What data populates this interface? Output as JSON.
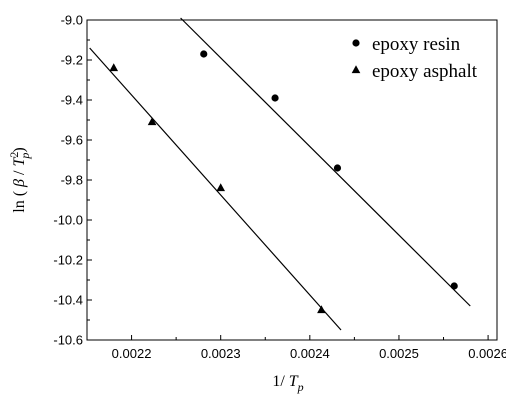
{
  "chart_data": {
    "type": "scatter",
    "xlabel": {
      "prefix": "1/ ",
      "var": "T",
      "sub": "p"
    },
    "ylabel": {
      "prefix": "ln ( ",
      "beta": "β",
      "mid": " / ",
      "var": "T",
      "sub": "p",
      "sup": "2",
      "suffix": ")"
    },
    "xlim": [
      0.00215,
      0.00261
    ],
    "ylim": [
      -10.6,
      -9.0
    ],
    "xticks": [
      {
        "value": 0.0022,
        "label": "0.0022"
      },
      {
        "value": 0.0023,
        "label": "0.0023"
      },
      {
        "value": 0.0024,
        "label": "0.0024"
      },
      {
        "value": 0.0025,
        "label": "0.0025"
      },
      {
        "value": 0.0026,
        "label": "0.0026"
      }
    ],
    "yticks": [
      {
        "value": -9.0,
        "label": "-9.0"
      },
      {
        "value": -9.2,
        "label": "-9.2"
      },
      {
        "value": -9.4,
        "label": "-9.4"
      },
      {
        "value": -9.6,
        "label": "-9.6"
      },
      {
        "value": -9.8,
        "label": "-9.8"
      },
      {
        "value": -10.0,
        "label": "-10.0"
      },
      {
        "value": -10.2,
        "label": "-10.2"
      },
      {
        "value": -10.4,
        "label": "-10.4"
      },
      {
        "value": -10.6,
        "label": "-10.6"
      }
    ],
    "grid": false,
    "legend_position": "top-right",
    "series": [
      {
        "name": "epoxy resin",
        "marker": "circle",
        "color": "#000000",
        "points": [
          {
            "x": 0.002281,
            "y": -9.17
          },
          {
            "x": 0.002361,
            "y": -9.39
          },
          {
            "x": 0.002431,
            "y": -9.74
          },
          {
            "x": 0.002562,
            "y": -10.33
          }
        ],
        "fit_line": [
          {
            "x": 0.002255,
            "y": -8.99
          },
          {
            "x": 0.00258,
            "y": -10.43
          }
        ]
      },
      {
        "name": "epoxy asphalt",
        "marker": "triangle",
        "color": "#000000",
        "points": [
          {
            "x": 0.00218,
            "y": -9.24
          },
          {
            "x": 0.002223,
            "y": -9.51
          },
          {
            "x": 0.0023,
            "y": -9.84
          },
          {
            "x": 0.002413,
            "y": -10.45
          }
        ],
        "fit_line": [
          {
            "x": 0.002153,
            "y": -9.14
          },
          {
            "x": 0.002435,
            "y": -10.55
          }
        ]
      }
    ]
  }
}
